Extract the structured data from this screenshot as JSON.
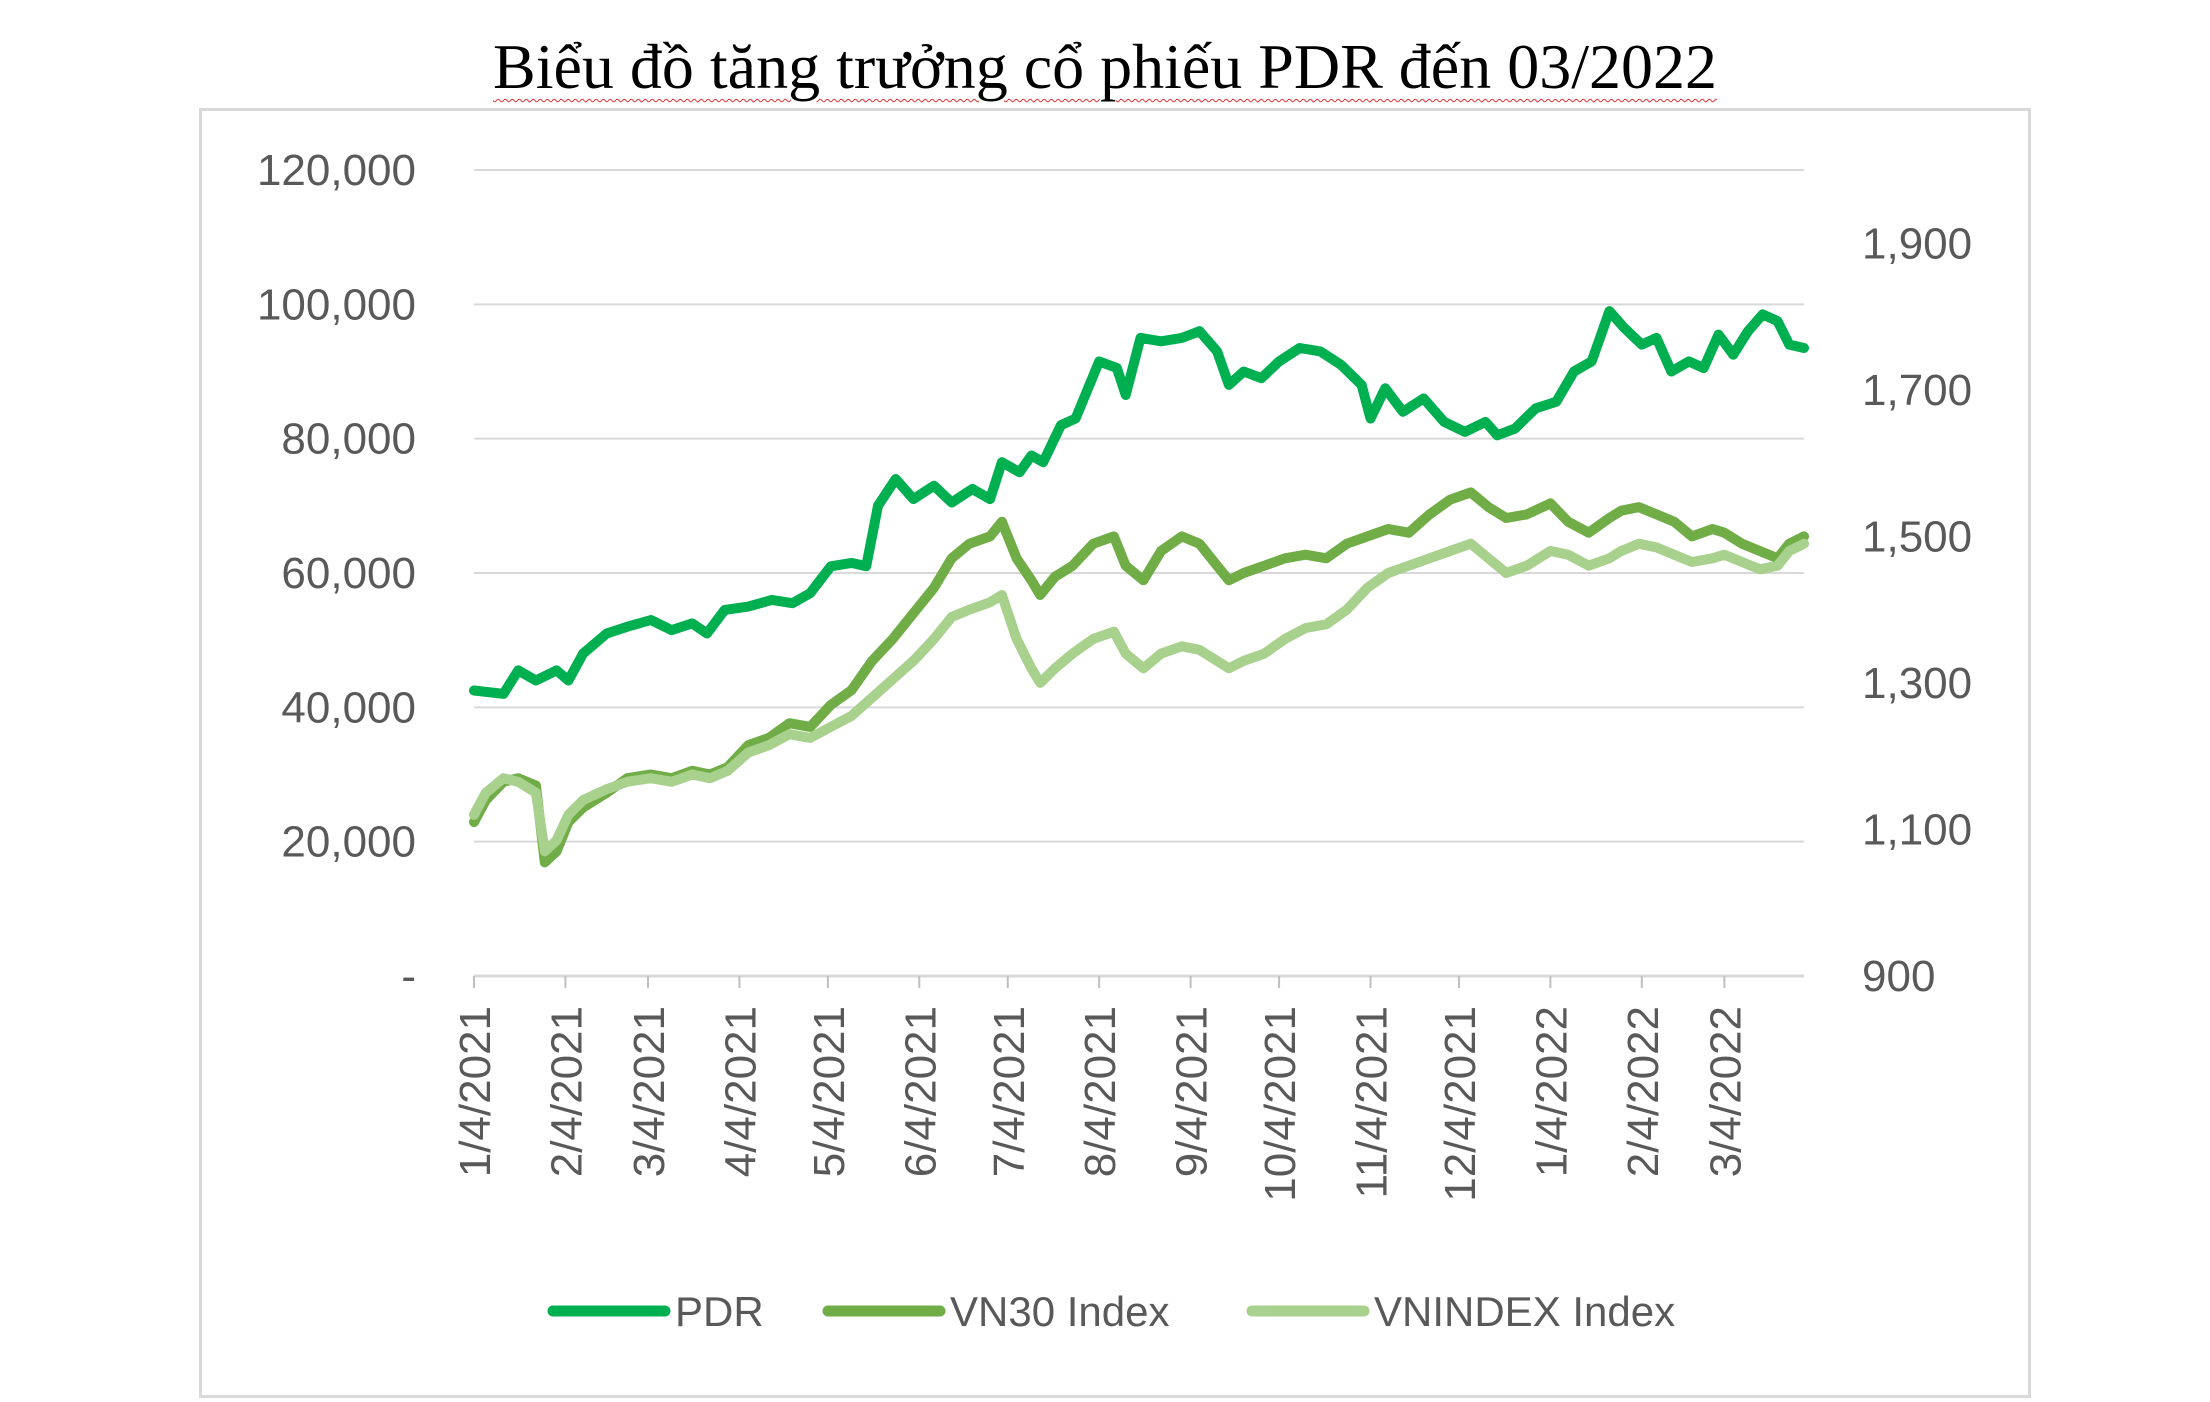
{
  "chart_data": {
    "type": "line",
    "title": "Biểu đồ tăng trưởng cổ phiếu PDR đến 03/2022",
    "title_words": [
      "Biểu",
      "đồ",
      "tăng",
      "trưởng",
      "cổ",
      "phiếu",
      "PDR",
      "đến",
      "03/2022"
    ],
    "x_tick_labels": [
      "1/4/2021",
      "2/4/2021",
      "3/4/2021",
      "4/4/2021",
      "5/4/2021",
      "6/4/2021",
      "7/4/2021",
      "8/4/2021",
      "9/4/2021",
      "10/4/2021",
      "11/4/2021",
      "12/4/2021",
      "1/4/2022",
      "2/4/2022",
      "3/4/2022"
    ],
    "xlim": [
      "2021-01-04",
      "2022-03-31"
    ],
    "y_left": {
      "ylim": [
        0,
        120000
      ],
      "tick_labels": [
        "-",
        "20,000",
        "40,000",
        "60,000",
        "80,000",
        "100,000",
        "120,000"
      ]
    },
    "y_right": {
      "ylim": [
        900,
        2000
      ],
      "tick_labels": [
        "900",
        "1,100",
        "1,300",
        "1,500",
        "1,700",
        "1,900"
      ]
    },
    "grid": true,
    "legend_position": "bottom",
    "series": [
      {
        "name": "PDR",
        "axis": "left",
        "color": "#00b050",
        "points": [
          [
            "2021-01-04",
            42500
          ],
          [
            "2021-01-14",
            42000
          ],
          [
            "2021-01-19",
            45500
          ],
          [
            "2021-01-25",
            44000
          ],
          [
            "2021-02-01",
            45500
          ],
          [
            "2021-02-05",
            44000
          ],
          [
            "2021-02-10",
            48000
          ],
          [
            "2021-02-18",
            51000
          ],
          [
            "2021-02-25",
            52000
          ],
          [
            "2021-03-05",
            53000
          ],
          [
            "2021-03-12",
            51500
          ],
          [
            "2021-03-19",
            52500
          ],
          [
            "2021-03-24",
            51000
          ],
          [
            "2021-03-30",
            54500
          ],
          [
            "2021-04-07",
            55000
          ],
          [
            "2021-04-15",
            56000
          ],
          [
            "2021-04-22",
            55500
          ],
          [
            "2021-04-28",
            57000
          ],
          [
            "2021-05-05",
            61000
          ],
          [
            "2021-05-12",
            61500
          ],
          [
            "2021-05-17",
            61000
          ],
          [
            "2021-05-21",
            70000
          ],
          [
            "2021-05-27",
            74000
          ],
          [
            "2021-06-02",
            71000
          ],
          [
            "2021-06-09",
            73000
          ],
          [
            "2021-06-15",
            70500
          ],
          [
            "2021-06-22",
            72500
          ],
          [
            "2021-06-28",
            71000
          ],
          [
            "2021-07-02",
            76500
          ],
          [
            "2021-07-08",
            75000
          ],
          [
            "2021-07-12",
            77500
          ],
          [
            "2021-07-16",
            76500
          ],
          [
            "2021-07-22",
            82000
          ],
          [
            "2021-07-27",
            83000
          ],
          [
            "2021-08-04",
            91500
          ],
          [
            "2021-08-10",
            90500
          ],
          [
            "2021-08-13",
            86500
          ],
          [
            "2021-08-18",
            95000
          ],
          [
            "2021-08-25",
            94500
          ],
          [
            "2021-09-01",
            95000
          ],
          [
            "2021-09-07",
            96000
          ],
          [
            "2021-09-13",
            93000
          ],
          [
            "2021-09-17",
            88000
          ],
          [
            "2021-09-22",
            90000
          ],
          [
            "2021-09-28",
            89000
          ],
          [
            "2021-10-04",
            91500
          ],
          [
            "2021-10-11",
            93500
          ],
          [
            "2021-10-18",
            93000
          ],
          [
            "2021-10-25",
            91000
          ],
          [
            "2021-11-01",
            88000
          ],
          [
            "2021-11-04",
            83000
          ],
          [
            "2021-11-09",
            87500
          ],
          [
            "2021-11-15",
            84000
          ],
          [
            "2021-11-22",
            86000
          ],
          [
            "2021-11-29",
            82500
          ],
          [
            "2021-12-06",
            81000
          ],
          [
            "2021-12-13",
            82500
          ],
          [
            "2021-12-17",
            80500
          ],
          [
            "2021-12-23",
            81500
          ],
          [
            "2021-12-30",
            84500
          ],
          [
            "2022-01-06",
            85500
          ],
          [
            "2022-01-12",
            90000
          ],
          [
            "2022-01-18",
            91500
          ],
          [
            "2022-01-24",
            99000
          ],
          [
            "2022-01-29",
            96500
          ],
          [
            "2022-02-04",
            94000
          ],
          [
            "2022-02-09",
            95000
          ],
          [
            "2022-02-14",
            90000
          ],
          [
            "2022-02-20",
            91500
          ],
          [
            "2022-02-25",
            90500
          ],
          [
            "2022-03-02",
            95500
          ],
          [
            "2022-03-07",
            92500
          ],
          [
            "2022-03-12",
            96000
          ],
          [
            "2022-03-17",
            98500
          ],
          [
            "2022-03-22",
            97500
          ],
          [
            "2022-03-26",
            94000
          ],
          [
            "2022-03-31",
            93500
          ]
        ]
      },
      {
        "name": "VN30 Index",
        "axis": "right",
        "color": "#70ad47",
        "points": [
          [
            "2021-01-04",
            1110
          ],
          [
            "2021-01-08",
            1140
          ],
          [
            "2021-01-14",
            1165
          ],
          [
            "2021-01-19",
            1170
          ],
          [
            "2021-01-25",
            1160
          ],
          [
            "2021-01-28",
            1055
          ],
          [
            "2021-02-01",
            1070
          ],
          [
            "2021-02-05",
            1110
          ],
          [
            "2021-02-10",
            1130
          ],
          [
            "2021-02-18",
            1150
          ],
          [
            "2021-02-25",
            1170
          ],
          [
            "2021-03-05",
            1175
          ],
          [
            "2021-03-12",
            1170
          ],
          [
            "2021-03-19",
            1180
          ],
          [
            "2021-03-25",
            1175
          ],
          [
            "2021-03-31",
            1185
          ],
          [
            "2021-04-07",
            1215
          ],
          [
            "2021-04-14",
            1225
          ],
          [
            "2021-04-21",
            1245
          ],
          [
            "2021-04-28",
            1240
          ],
          [
            "2021-05-05",
            1270
          ],
          [
            "2021-05-12",
            1290
          ],
          [
            "2021-05-19",
            1330
          ],
          [
            "2021-05-26",
            1360
          ],
          [
            "2021-06-02",
            1395
          ],
          [
            "2021-06-09",
            1430
          ],
          [
            "2021-06-15",
            1470
          ],
          [
            "2021-06-21",
            1490
          ],
          [
            "2021-06-28",
            1500
          ],
          [
            "2021-07-02",
            1520
          ],
          [
            "2021-07-07",
            1470
          ],
          [
            "2021-07-12",
            1440
          ],
          [
            "2021-07-15",
            1420
          ],
          [
            "2021-07-20",
            1445
          ],
          [
            "2021-07-26",
            1460
          ],
          [
            "2021-08-02",
            1490
          ],
          [
            "2021-08-09",
            1500
          ],
          [
            "2021-08-13",
            1460
          ],
          [
            "2021-08-19",
            1440
          ],
          [
            "2021-08-25",
            1480
          ],
          [
            "2021-09-01",
            1500
          ],
          [
            "2021-09-07",
            1490
          ],
          [
            "2021-09-13",
            1460
          ],
          [
            "2021-09-17",
            1440
          ],
          [
            "2021-09-22",
            1450
          ],
          [
            "2021-09-29",
            1460
          ],
          [
            "2021-10-06",
            1470
          ],
          [
            "2021-10-13",
            1475
          ],
          [
            "2021-10-20",
            1470
          ],
          [
            "2021-10-27",
            1490
          ],
          [
            "2021-11-03",
            1500
          ],
          [
            "2021-11-10",
            1510
          ],
          [
            "2021-11-17",
            1505
          ],
          [
            "2021-11-24",
            1530
          ],
          [
            "2021-12-01",
            1550
          ],
          [
            "2021-12-08",
            1560
          ],
          [
            "2021-12-14",
            1540
          ],
          [
            "2021-12-20",
            1525
          ],
          [
            "2021-12-27",
            1530
          ],
          [
            "2022-01-04",
            1545
          ],
          [
            "2022-01-10",
            1520
          ],
          [
            "2022-01-17",
            1505
          ],
          [
            "2022-01-24",
            1525
          ],
          [
            "2022-01-28",
            1535
          ],
          [
            "2022-02-03",
            1540
          ],
          [
            "2022-02-09",
            1530
          ],
          [
            "2022-02-15",
            1520
          ],
          [
            "2022-02-21",
            1500
          ],
          [
            "2022-02-28",
            1510
          ],
          [
            "2022-03-04",
            1505
          ],
          [
            "2022-03-10",
            1490
          ],
          [
            "2022-03-16",
            1480
          ],
          [
            "2022-03-22",
            1470
          ],
          [
            "2022-03-26",
            1490
          ],
          [
            "2022-03-31",
            1500
          ]
        ]
      },
      {
        "name": "VNINDEX Index",
        "axis": "right",
        "color": "#a9d18e",
        "points": [
          [
            "2021-01-04",
            1120
          ],
          [
            "2021-01-08",
            1150
          ],
          [
            "2021-01-14",
            1170
          ],
          [
            "2021-01-19",
            1165
          ],
          [
            "2021-01-25",
            1150
          ],
          [
            "2021-01-28",
            1070
          ],
          [
            "2021-02-01",
            1085
          ],
          [
            "2021-02-05",
            1120
          ],
          [
            "2021-02-10",
            1140
          ],
          [
            "2021-02-18",
            1155
          ],
          [
            "2021-02-25",
            1165
          ],
          [
            "2021-03-05",
            1170
          ],
          [
            "2021-03-12",
            1165
          ],
          [
            "2021-03-19",
            1175
          ],
          [
            "2021-03-25",
            1170
          ],
          [
            "2021-03-31",
            1180
          ],
          [
            "2021-04-07",
            1205
          ],
          [
            "2021-04-14",
            1215
          ],
          [
            "2021-04-21",
            1230
          ],
          [
            "2021-04-28",
            1225
          ],
          [
            "2021-05-05",
            1240
          ],
          [
            "2021-05-12",
            1255
          ],
          [
            "2021-05-19",
            1280
          ],
          [
            "2021-05-26",
            1305
          ],
          [
            "2021-06-02",
            1330
          ],
          [
            "2021-06-09",
            1360
          ],
          [
            "2021-06-15",
            1390
          ],
          [
            "2021-06-21",
            1400
          ],
          [
            "2021-06-28",
            1410
          ],
          [
            "2021-07-02",
            1420
          ],
          [
            "2021-07-07",
            1360
          ],
          [
            "2021-07-12",
            1320
          ],
          [
            "2021-07-15",
            1300
          ],
          [
            "2021-07-20",
            1320
          ],
          [
            "2021-07-26",
            1340
          ],
          [
            "2021-08-02",
            1360
          ],
          [
            "2021-08-09",
            1370
          ],
          [
            "2021-08-13",
            1340
          ],
          [
            "2021-08-19",
            1320
          ],
          [
            "2021-08-25",
            1340
          ],
          [
            "2021-09-01",
            1350
          ],
          [
            "2021-09-07",
            1345
          ],
          [
            "2021-09-13",
            1330
          ],
          [
            "2021-09-17",
            1320
          ],
          [
            "2021-09-22",
            1330
          ],
          [
            "2021-09-29",
            1340
          ],
          [
            "2021-10-06",
            1360
          ],
          [
            "2021-10-13",
            1375
          ],
          [
            "2021-10-20",
            1380
          ],
          [
            "2021-10-27",
            1400
          ],
          [
            "2021-11-03",
            1430
          ],
          [
            "2021-11-10",
            1450
          ],
          [
            "2021-11-17",
            1460
          ],
          [
            "2021-11-24",
            1470
          ],
          [
            "2021-12-01",
            1480
          ],
          [
            "2021-12-08",
            1490
          ],
          [
            "2021-12-14",
            1470
          ],
          [
            "2021-12-20",
            1450
          ],
          [
            "2021-12-27",
            1460
          ],
          [
            "2022-01-04",
            1480
          ],
          [
            "2022-01-10",
            1475
          ],
          [
            "2022-01-17",
            1460
          ],
          [
            "2022-01-24",
            1470
          ],
          [
            "2022-01-28",
            1480
          ],
          [
            "2022-02-03",
            1490
          ],
          [
            "2022-02-09",
            1485
          ],
          [
            "2022-02-15",
            1475
          ],
          [
            "2022-02-21",
            1465
          ],
          [
            "2022-02-28",
            1470
          ],
          [
            "2022-03-04",
            1475
          ],
          [
            "2022-03-10",
            1465
          ],
          [
            "2022-03-16",
            1455
          ],
          [
            "2022-03-22",
            1460
          ],
          [
            "2022-03-26",
            1480
          ],
          [
            "2022-03-31",
            1490
          ]
        ]
      }
    ]
  }
}
